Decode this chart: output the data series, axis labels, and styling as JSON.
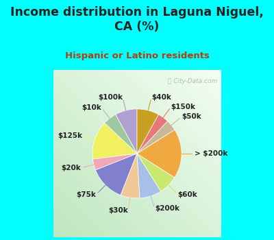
{
  "title": "Income distribution in Laguna Niguel,\nCA (%)",
  "subtitle": "Hispanic or Latino residents",
  "watermark": "ⓘ City-Data.com",
  "background_color": "#00FFFF",
  "chart_bg": "#d8efe0",
  "labels": [
    "$100k",
    "$10k",
    "$125k",
    "$20k",
    "$75k",
    "$30k",
    "$200k",
    "$60k",
    "> $200k",
    "$50k",
    "$150k",
    "$40k"
  ],
  "sizes": [
    8,
    5,
    14,
    4,
    13,
    7,
    8,
    7,
    18,
    4,
    4,
    8
  ],
  "colors": [
    "#b0a0d0",
    "#a0c8a0",
    "#f0f060",
    "#f0a8b8",
    "#8080cc",
    "#f0c898",
    "#a8c0e8",
    "#c8e870",
    "#f0a840",
    "#c8b898",
    "#e87878",
    "#c8a020"
  ],
  "label_fontsize": 7.5,
  "title_fontsize": 12.5,
  "subtitle_fontsize": 9.5,
  "title_color": "#222222",
  "subtitle_color": "#b04010"
}
